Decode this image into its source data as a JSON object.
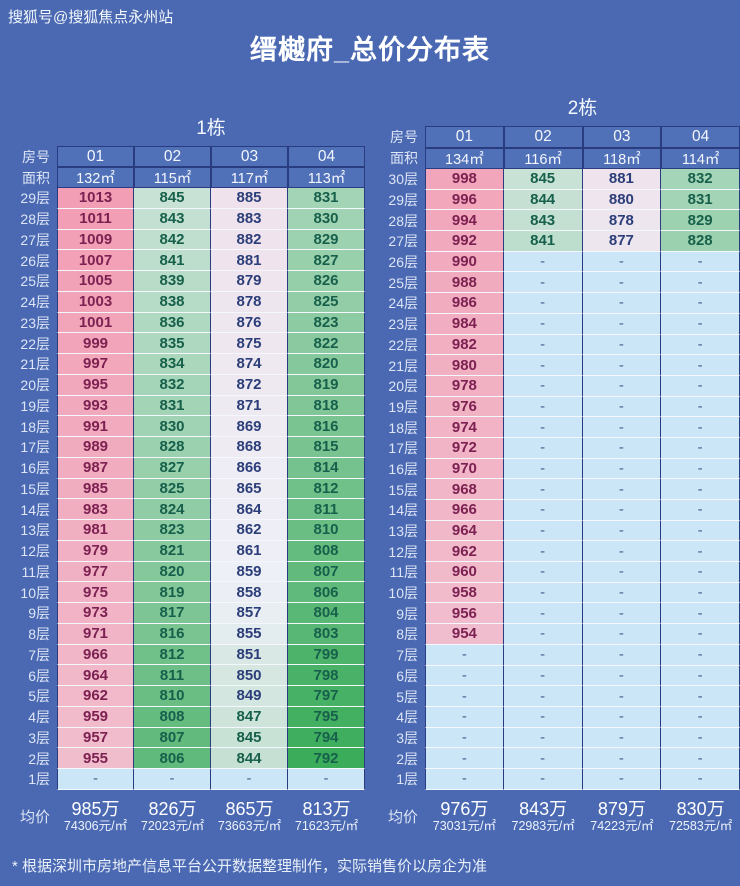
{
  "watermark": "搜狐号@搜狐焦点永州站",
  "title": "缙樾府_总价分布表",
  "footer": "* 根据深圳市房地产信息平台公开数据整理制作，实际销售价以房企为准",
  "labels": {
    "room": "房号",
    "area": "面积",
    "avg": "均价",
    "empty": "-"
  },
  "colors": {
    "background": "#4A69B2",
    "header_bg": "#5070B8",
    "grid_dark": "#2A3C80",
    "grid_light": "#F4F8FD",
    "scale_low": "#3AAC5A",
    "scale_mid": "#EEF0F7",
    "scale_high": "#F29EB4",
    "dash_bg": "#CBE6F6",
    "text_low": "#17604B",
    "text_mid": "#2C3E79",
    "text_high": "#7D2152",
    "text_dash": "#44608E"
  },
  "chart_data": [
    {
      "type": "heatmap",
      "title": "1栋",
      "columns": [
        "01",
        "02",
        "03",
        "04"
      ],
      "areas": [
        "132㎡",
        "115㎡",
        "117㎡",
        "113㎡"
      ],
      "rows": [
        "29层",
        "28层",
        "27层",
        "26层",
        "25层",
        "24层",
        "23层",
        "22层",
        "21层",
        "20层",
        "19层",
        "18层",
        "17层",
        "16层",
        "15层",
        "14层",
        "13层",
        "12层",
        "11层",
        "10层",
        "9层",
        "8层",
        "7层",
        "6层",
        "5层",
        "4层",
        "3层",
        "2层",
        "1层"
      ],
      "values": [
        [
          1013,
          845,
          885,
          831
        ],
        [
          1011,
          843,
          883,
          830
        ],
        [
          1009,
          842,
          882,
          829
        ],
        [
          1007,
          841,
          881,
          827
        ],
        [
          1005,
          839,
          879,
          826
        ],
        [
          1003,
          838,
          878,
          825
        ],
        [
          1001,
          836,
          876,
          823
        ],
        [
          999,
          835,
          875,
          822
        ],
        [
          997,
          834,
          874,
          820
        ],
        [
          995,
          832,
          872,
          819
        ],
        [
          993,
          831,
          871,
          818
        ],
        [
          991,
          830,
          869,
          816
        ],
        [
          989,
          828,
          868,
          815
        ],
        [
          987,
          827,
          866,
          814
        ],
        [
          985,
          825,
          865,
          812
        ],
        [
          983,
          824,
          864,
          811
        ],
        [
          981,
          823,
          862,
          810
        ],
        [
          979,
          821,
          861,
          808
        ],
        [
          977,
          820,
          859,
          807
        ],
        [
          975,
          819,
          858,
          806
        ],
        [
          973,
          817,
          857,
          804
        ],
        [
          971,
          816,
          855,
          803
        ],
        [
          966,
          812,
          851,
          799
        ],
        [
          964,
          811,
          850,
          798
        ],
        [
          962,
          810,
          849,
          797
        ],
        [
          959,
          808,
          847,
          795
        ],
        [
          957,
          807,
          845,
          794
        ],
        [
          955,
          806,
          844,
          792
        ],
        [
          "-",
          "-",
          "-",
          "-"
        ]
      ],
      "avg_price": [
        "985万",
        "826万",
        "865万",
        "813万"
      ],
      "avg_unit": [
        "74306元/㎡",
        "72023元/㎡",
        "73663元/㎡",
        "71623元/㎡"
      ]
    },
    {
      "type": "heatmap",
      "title": "2栋",
      "columns": [
        "01",
        "02",
        "03",
        "04"
      ],
      "areas": [
        "134㎡",
        "116㎡",
        "118㎡",
        "114㎡"
      ],
      "rows": [
        "30层",
        "29层",
        "28层",
        "27层",
        "26层",
        "25层",
        "24层",
        "23层",
        "22层",
        "21层",
        "20层",
        "19层",
        "18层",
        "17层",
        "16层",
        "15层",
        "14层",
        "13层",
        "12层",
        "11层",
        "10层",
        "9层",
        "8层",
        "7层",
        "6层",
        "5层",
        "4层",
        "3层",
        "2层",
        "1层"
      ],
      "values": [
        [
          998,
          845,
          881,
          832
        ],
        [
          996,
          844,
          880,
          831
        ],
        [
          994,
          843,
          878,
          829
        ],
        [
          992,
          841,
          877,
          828
        ],
        [
          990,
          "-",
          "-",
          "-"
        ],
        [
          988,
          "-",
          "-",
          "-"
        ],
        [
          986,
          "-",
          "-",
          "-"
        ],
        [
          984,
          "-",
          "-",
          "-"
        ],
        [
          982,
          "-",
          "-",
          "-"
        ],
        [
          980,
          "-",
          "-",
          "-"
        ],
        [
          978,
          "-",
          "-",
          "-"
        ],
        [
          976,
          "-",
          "-",
          "-"
        ],
        [
          974,
          "-",
          "-",
          "-"
        ],
        [
          972,
          "-",
          "-",
          "-"
        ],
        [
          970,
          "-",
          "-",
          "-"
        ],
        [
          968,
          "-",
          "-",
          "-"
        ],
        [
          966,
          "-",
          "-",
          "-"
        ],
        [
          964,
          "-",
          "-",
          "-"
        ],
        [
          962,
          "-",
          "-",
          "-"
        ],
        [
          960,
          "-",
          "-",
          "-"
        ],
        [
          958,
          "-",
          "-",
          "-"
        ],
        [
          956,
          "-",
          "-",
          "-"
        ],
        [
          954,
          "-",
          "-",
          "-"
        ],
        [
          "-",
          "-",
          "-",
          "-"
        ],
        [
          "-",
          "-",
          "-",
          "-"
        ],
        [
          "-",
          "-",
          "-",
          "-"
        ],
        [
          "-",
          "-",
          "-",
          "-"
        ],
        [
          "-",
          "-",
          "-",
          "-"
        ],
        [
          "-",
          "-",
          "-",
          "-"
        ],
        [
          "-",
          "-",
          "-",
          "-"
        ]
      ],
      "avg_price": [
        "976万",
        "843万",
        "879万",
        "830万"
      ],
      "avg_unit": [
        "73031元/㎡",
        "72983元/㎡",
        "74223元/㎡",
        "72583元/㎡"
      ]
    }
  ]
}
